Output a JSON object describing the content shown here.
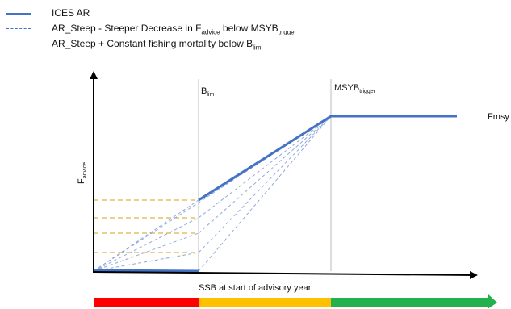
{
  "legend": [
    {
      "text": "ICES AR",
      "sub": "",
      "suffix": "",
      "sub2": "",
      "color": "#4472c4",
      "style": "solid"
    },
    {
      "text": "AR_Steep - Steeper Decrease in F",
      "sub": "advice",
      "suffix": " below MSYB",
      "sub2": "trigger",
      "color": "#4472c4",
      "style": "dashed"
    },
    {
      "text": "AR_Steep + Constant fishing mortality below B",
      "sub": "lim",
      "suffix": "",
      "sub2": "",
      "color": "#d4a017",
      "style": "dashed"
    }
  ],
  "labels": {
    "blim_main": "B",
    "blim_sub": "lim",
    "msyb_main": "MSYB",
    "msyb_sub": "trigger",
    "fmsy": "Fmsy",
    "y_axis_main": "F",
    "y_axis_sub": "advice",
    "x_axis": "SSB at start of advisory year"
  },
  "colors": {
    "ices_ar": "#4472c4",
    "steep": "#8faadc",
    "constant": "#d4a017",
    "axis": "#000000",
    "bar_red": "#ff0000",
    "bar_amber": "#ffc000",
    "bar_green": "#22b14c"
  },
  "zones": [
    "red",
    "amber",
    "green"
  ]
}
